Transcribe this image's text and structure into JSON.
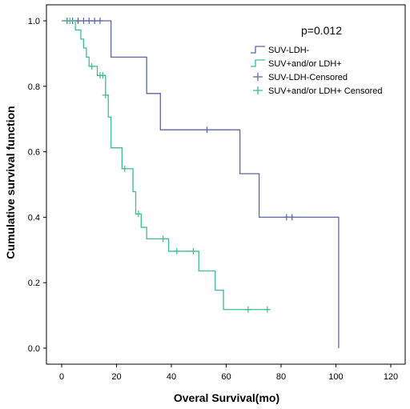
{
  "chart_data": {
    "type": "line",
    "xlabel": "Overal Survival(mo)",
    "ylabel": "Cumulative survival function",
    "xlim": [
      0,
      120
    ],
    "ylim": [
      0,
      1.0
    ],
    "x_ticks": [
      "0",
      "20",
      "40",
      "60",
      "80",
      "100",
      "120"
    ],
    "y_ticks": [
      "0.0",
      "0.2",
      "0.4",
      "0.6",
      "0.8",
      "1.0"
    ],
    "annotation": "p=0.012",
    "legend_placement": "top-right",
    "grid": false,
    "series": [
      {
        "name": "SUV-LDH-",
        "color": "#5e66a8",
        "steps": [
          [
            0,
            1.0
          ],
          [
            18,
            0.889
          ],
          [
            31,
            0.778
          ],
          [
            36,
            0.667
          ],
          [
            65,
            0.533
          ],
          [
            72,
            0.4
          ],
          [
            101,
            0.0
          ]
        ],
        "end_x": 101,
        "censored": [
          [
            2,
            1.0
          ],
          [
            4,
            1.0
          ],
          [
            6,
            1.0
          ],
          [
            8,
            1.0
          ],
          [
            10,
            1.0
          ],
          [
            12,
            1.0
          ],
          [
            14,
            1.0
          ],
          [
            53,
            0.667
          ],
          [
            82,
            0.4
          ],
          [
            84,
            0.4
          ]
        ]
      },
      {
        "name": "SUV+and/or LDH+",
        "color": "#3cbf8c",
        "steps": [
          [
            0,
            1.0
          ],
          [
            5,
            0.972
          ],
          [
            7,
            0.944
          ],
          [
            8,
            0.917
          ],
          [
            9,
            0.889
          ],
          [
            10,
            0.861
          ],
          [
            13,
            0.833
          ],
          [
            16,
            0.773
          ],
          [
            17,
            0.706
          ],
          [
            18,
            0.612
          ],
          [
            22,
            0.548
          ],
          [
            26,
            0.478
          ],
          [
            27,
            0.41
          ],
          [
            29,
            0.369
          ],
          [
            31,
            0.334
          ],
          [
            39,
            0.296
          ],
          [
            50,
            0.236
          ],
          [
            56,
            0.177
          ],
          [
            59,
            0.118
          ]
        ],
        "end_x": 75,
        "censored": [
          [
            3,
            1.0
          ],
          [
            11,
            0.861
          ],
          [
            14,
            0.833
          ],
          [
            15,
            0.833
          ],
          [
            16,
            0.773
          ],
          [
            23,
            0.548
          ],
          [
            28,
            0.41
          ],
          [
            37,
            0.334
          ],
          [
            42,
            0.296
          ],
          [
            48,
            0.296
          ],
          [
            68,
            0.118
          ],
          [
            75,
            0.118
          ]
        ]
      }
    ],
    "legend": [
      {
        "label": "SUV-LDH-",
        "color": "#5e66a8",
        "kind": "line"
      },
      {
        "label": "SUV+and/or LDH+",
        "color": "#3cbf8c",
        "kind": "line"
      },
      {
        "label": "SUV-LDH-Censored",
        "color": "#5e66a8",
        "kind": "cross"
      },
      {
        "label": "SUV+and/or LDH+ Censored",
        "color": "#3cbf8c",
        "kind": "cross"
      }
    ]
  }
}
